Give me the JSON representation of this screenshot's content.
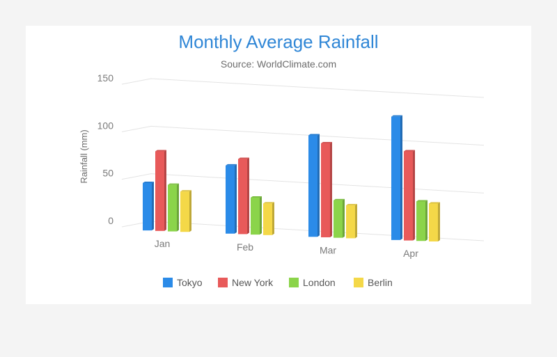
{
  "chart_data": {
    "type": "bar",
    "title": "Monthly Average Rainfall",
    "subtitle": "Source: WorldClimate.com",
    "xlabel": "",
    "ylabel": "Rainfall (mm)",
    "categories": [
      "Jan",
      "Feb",
      "Mar",
      "Apr"
    ],
    "ylim": [
      0,
      150
    ],
    "yticks": [
      0,
      50,
      100,
      150
    ],
    "grid": true,
    "three_d": true,
    "legend_position": "bottom",
    "series": [
      {
        "name": "Tokyo",
        "color": "#2b8be8",
        "values": [
          49.9,
          71.5,
          106.4,
          129.2
        ]
      },
      {
        "name": "New York",
        "color": "#e85a5a",
        "values": [
          83.6,
          78.8,
          98.5,
          93.4
        ]
      },
      {
        "name": "London",
        "color": "#8bd44a",
        "values": [
          48.9,
          38.8,
          39.3,
          41.4
        ]
      },
      {
        "name": "Berlin",
        "color": "#f4d848",
        "values": [
          42.4,
          33.2,
          34.5,
          39.7
        ]
      }
    ]
  }
}
